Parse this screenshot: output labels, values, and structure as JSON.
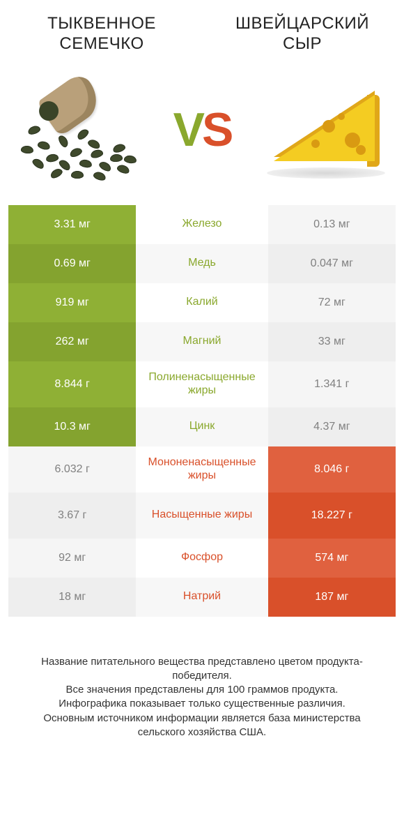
{
  "titles": {
    "left": "ТЫКВЕННОЕ СЕМЕЧКО",
    "right": "ШВЕЙЦАРСКИЙ СЫР"
  },
  "vs": {
    "v": "V",
    "s": "S"
  },
  "colors": {
    "left_win": {
      "bg": "#8fb035",
      "bg_alt": "#84a32f",
      "fg": "#ffffff"
    },
    "left_lose": {
      "bg": "#f5f5f5",
      "bg_alt": "#eeeeee",
      "fg": "#808080"
    },
    "right_win": {
      "bg": "#e0613f",
      "bg_alt": "#d9502a",
      "fg": "#ffffff"
    },
    "right_lose": {
      "bg": "#f5f5f5",
      "bg_alt": "#eeeeee",
      "fg": "#808080"
    },
    "mid_green": "#8aa82d",
    "mid_orange": "#d9502a",
    "mid_bg": "#ffffff",
    "mid_bg_alt": "#f7f7f7"
  },
  "rows": [
    {
      "label": "Железо",
      "left": "3.31 мг",
      "right": "0.13 мг",
      "winner": "left",
      "tall": false
    },
    {
      "label": "Медь",
      "left": "0.69 мг",
      "right": "0.047 мг",
      "winner": "left",
      "tall": false
    },
    {
      "label": "Калий",
      "left": "919 мг",
      "right": "72 мг",
      "winner": "left",
      "tall": false
    },
    {
      "label": "Магний",
      "left": "262 мг",
      "right": "33 мг",
      "winner": "left",
      "tall": false
    },
    {
      "label": "Полиненасыщенные жиры",
      "left": "8.844 г",
      "right": "1.341 г",
      "winner": "left",
      "tall": true
    },
    {
      "label": "Цинк",
      "left": "10.3 мг",
      "right": "4.37 мг",
      "winner": "left",
      "tall": false
    },
    {
      "label": "Мононенасыщенные жиры",
      "left": "6.032 г",
      "right": "8.046 г",
      "winner": "right",
      "tall": true
    },
    {
      "label": "Насыщенные жиры",
      "left": "3.67 г",
      "right": "18.227 г",
      "winner": "right",
      "tall": true
    },
    {
      "label": "Фосфор",
      "left": "92 мг",
      "right": "574 мг",
      "winner": "right",
      "tall": false
    },
    {
      "label": "Натрий",
      "left": "18 мг",
      "right": "187 мг",
      "winner": "right",
      "tall": false
    }
  ],
  "footer": {
    "l1": "Название питательного вещества представлено цветом продукта-победителя.",
    "l2": "Все значения представлены для 100 граммов продукта.",
    "l3": "Инфографика показывает только существенные различия.",
    "l4": "Основным источником информации является база министерства сельского хозяйства США."
  },
  "seed_positions": [
    [
      18,
      70,
      -20
    ],
    [
      32,
      92,
      15
    ],
    [
      44,
      110,
      -10
    ],
    [
      62,
      120,
      40
    ],
    [
      78,
      102,
      -25
    ],
    [
      92,
      118,
      10
    ],
    [
      108,
      104,
      -15
    ],
    [
      120,
      122,
      30
    ],
    [
      136,
      110,
      -5
    ],
    [
      146,
      126,
      20
    ],
    [
      60,
      86,
      60
    ],
    [
      88,
      76,
      -40
    ],
    [
      104,
      90,
      25
    ],
    [
      8,
      98,
      5
    ],
    [
      24,
      118,
      35
    ],
    [
      50,
      132,
      -30
    ],
    [
      80,
      134,
      0
    ],
    [
      112,
      136,
      18
    ],
    [
      140,
      96,
      -18
    ],
    [
      156,
      112,
      8
    ]
  ],
  "cheese_holes": [
    [
      70,
      42,
      18
    ],
    [
      102,
      60,
      22
    ],
    [
      54,
      70,
      12
    ],
    [
      92,
      32,
      10
    ],
    [
      118,
      78,
      14
    ]
  ]
}
